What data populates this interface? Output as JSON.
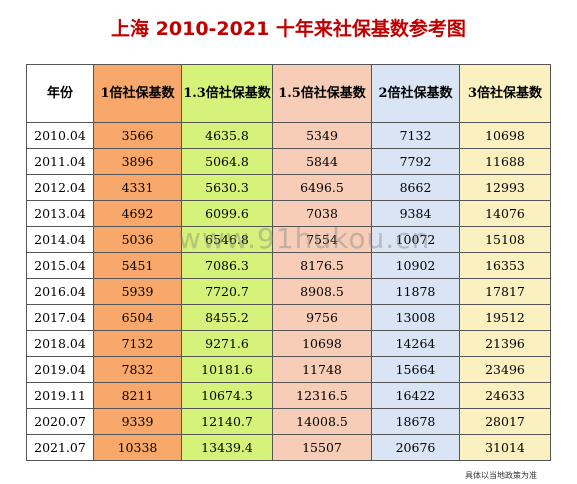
{
  "title": "上海 2010-2021 十年来社保基数参考图",
  "headers": [
    "年份",
    "1倍社保基数",
    "1.3倍社保基数",
    "1.5倍社保基数",
    "2倍社保基数",
    "3倍社保基数"
  ],
  "rows": [
    [
      "2010.04",
      "3566",
      "4635.8",
      "5349",
      "7132",
      "10698"
    ],
    [
      "2011.04",
      "3896",
      "5064.8",
      "5844",
      "7792",
      "11688"
    ],
    [
      "2012.04",
      "4331",
      "5630.3",
      "6496.5",
      "8662",
      "12993"
    ],
    [
      "2013.04",
      "4692",
      "6099.6",
      "7038",
      "9384",
      "14076"
    ],
    [
      "2014.04",
      "5036",
      "6546.8",
      "7554",
      "10072",
      "15108"
    ],
    [
      "2015.04",
      "5451",
      "7086.3",
      "8176.5",
      "10902",
      "16353"
    ],
    [
      "2016.04",
      "5939",
      "7720.7",
      "8908.5",
      "11878",
      "17817"
    ],
    [
      "2017.04",
      "6504",
      "8455.2",
      "9756",
      "13008",
      "19512"
    ],
    [
      "2018.04",
      "7132",
      "9271.6",
      "10698",
      "14264",
      "21396"
    ],
    [
      "2019.04",
      "7832",
      "10181.6",
      "11748",
      "15664",
      "23496"
    ],
    [
      "2019.11",
      "8211",
      "10674.3",
      "12316.5",
      "16422",
      "24633"
    ],
    [
      "2020.07",
      "9339",
      "12140.7",
      "14008.5",
      "18678",
      "28017"
    ],
    [
      "2021.07",
      "10338",
      "13439.4",
      "15507",
      "20676",
      "31014"
    ]
  ],
  "watermark": "www.91hukou.cn",
  "note": "具体以当地政策为准"
}
